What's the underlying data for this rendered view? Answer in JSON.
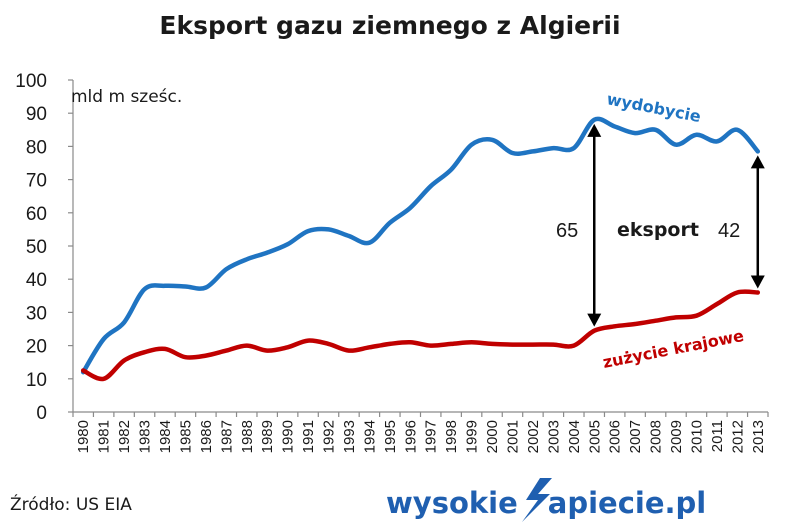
{
  "chart_data": {
    "type": "line",
    "title": "Eksport gazu ziemnego z Algierii",
    "unit_label": "mld m sześc.",
    "ylim": [
      0,
      100
    ],
    "y_ticks": [
      "0",
      "10",
      "20",
      "30",
      "40",
      "50",
      "60",
      "70",
      "80",
      "90",
      "100"
    ],
    "grid": false,
    "x": [
      "1980",
      "1981",
      "1982",
      "1983",
      "1984",
      "1985",
      "1986",
      "1987",
      "1988",
      "1989",
      "1990",
      "1991",
      "1992",
      "1993",
      "1994",
      "1995",
      "1996",
      "1997",
      "1998",
      "1999",
      "2000",
      "2001",
      "2002",
      "2003",
      "2004",
      "2005",
      "2006",
      "2007",
      "2008",
      "2009",
      "2010",
      "2011",
      "2012",
      "2013"
    ],
    "series": [
      {
        "name": "wydobycie",
        "color": "#1f74c2",
        "values": [
          12,
          22,
          27,
          37,
          38,
          37.8,
          37.5,
          43,
          46,
          48,
          50.5,
          54.5,
          55,
          53,
          51,
          57,
          61.5,
          68,
          73,
          80.5,
          82,
          78,
          78.5,
          79.5,
          79.5,
          88,
          86,
          84,
          85,
          80.5,
          83.5,
          81.5,
          85,
          78.5
        ]
      },
      {
        "name": "zużycie krajowe",
        "color": "#c00000",
        "values": [
          12.5,
          10,
          15.5,
          18,
          19,
          16.5,
          17,
          18.5,
          20,
          18.5,
          19.5,
          21.5,
          20.5,
          18.5,
          19.5,
          20.5,
          21,
          20,
          20.5,
          21,
          20.5,
          20.3,
          20.3,
          20.3,
          20,
          24.5,
          25.8,
          26.5,
          27.5,
          28.5,
          29,
          32.5,
          36,
          36
        ]
      }
    ],
    "annotations": [
      {
        "text": "65",
        "year": "2005"
      },
      {
        "text": "eksport"
      },
      {
        "text": "42",
        "year": "2013"
      }
    ]
  },
  "source": "Źródło: US EIA",
  "logo": {
    "part1": "wysokie",
    "part2": "apiecie.pl"
  }
}
